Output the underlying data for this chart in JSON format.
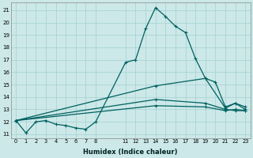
{
  "xlabel": "Humidex (Indice chaleur)",
  "bg_color": "#cce8e8",
  "line_color": "#006060",
  "grid_color": "#aad4d4",
  "yticks": [
    11,
    12,
    13,
    14,
    15,
    16,
    17,
    18,
    19,
    20,
    21
  ],
  "xtick_positions": [
    0,
    1,
    2,
    3,
    4,
    5,
    6,
    7,
    8,
    11,
    12,
    13,
    14,
    15,
    16,
    17,
    18,
    19,
    20,
    21,
    22,
    23
  ],
  "xtick_labels": [
    "0",
    "1",
    "2",
    "3",
    "4",
    "5",
    "6",
    "7",
    "8",
    "11",
    "12",
    "13",
    "14",
    "15",
    "16",
    "17",
    "18",
    "19",
    "20",
    "21",
    "22",
    "23"
  ],
  "xlim": [
    -0.5,
    23.5
  ],
  "ylim": [
    10.7,
    21.6
  ],
  "lines": [
    {
      "x": [
        0,
        1,
        2,
        3,
        4,
        5,
        6,
        7,
        8,
        11,
        12,
        13,
        14,
        15,
        16,
        17,
        18,
        19,
        20,
        21,
        22,
        23
      ],
      "y": [
        12.1,
        11.1,
        12.0,
        12.1,
        11.8,
        11.7,
        11.5,
        11.4,
        12.0,
        16.8,
        17.0,
        19.5,
        21.2,
        20.5,
        19.7,
        19.2,
        17.1,
        15.5,
        15.2,
        13.2,
        13.5,
        13.0
      ]
    },
    {
      "x": [
        0,
        14,
        19,
        21,
        22,
        23
      ],
      "y": [
        12.1,
        14.9,
        15.5,
        13.1,
        13.5,
        13.2
      ]
    },
    {
      "x": [
        0,
        14,
        19,
        21,
        22,
        23
      ],
      "y": [
        12.1,
        13.8,
        13.5,
        13.0,
        12.9,
        12.9
      ]
    },
    {
      "x": [
        0,
        14,
        19,
        21,
        22,
        23
      ],
      "y": [
        12.1,
        13.3,
        13.2,
        12.9,
        13.0,
        12.9
      ]
    }
  ]
}
